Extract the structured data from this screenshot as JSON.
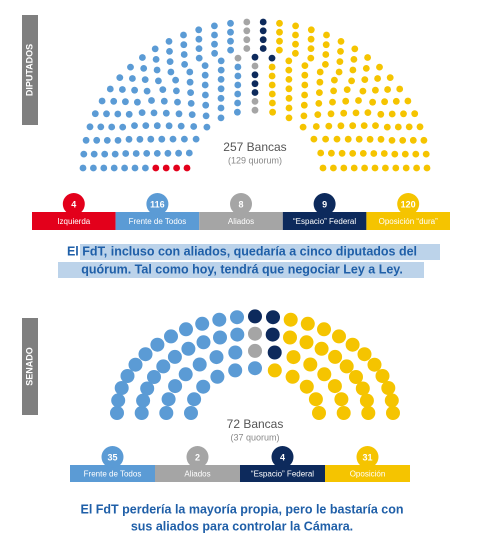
{
  "chart_data": [
    {
      "type": "parliament",
      "label": "DIPUTADOS",
      "total_label": "257 Bancas",
      "quorum_label": "(129 quorum)",
      "categories": [
        "Izquierda",
        "Frente de Todos",
        "Aliados",
        "“Espacio” Federal",
        "Oposición “dura”"
      ],
      "values": [
        4,
        116,
        8,
        9,
        120
      ],
      "colors": [
        "#e3001b",
        "#5b9bd5",
        "#a5a5a5",
        "#0d2a5c",
        "#f5c400"
      ],
      "caption": [
        "El FdT, incluso con aliados, quedaría a cinco diputados del",
        "quórum. Tal como hoy, tendrá que negociar Ley a Ley."
      ]
    },
    {
      "type": "parliament",
      "label": "SENADO",
      "total_label": "72 Bancas",
      "quorum_label": "(37 quorum)",
      "categories": [
        "Frente de Todos",
        "Aliados",
        "“Espacio” Federal",
        "Oposición"
      ],
      "values": [
        35,
        2,
        4,
        31
      ],
      "colors": [
        "#5b9bd5",
        "#a5a5a5",
        "#0d2a5c",
        "#f5c400"
      ],
      "caption": [
        "El FdT perdería la mayoría propia, pero le bastaría con",
        "sus aliados para controlar la Cámara."
      ]
    }
  ]
}
